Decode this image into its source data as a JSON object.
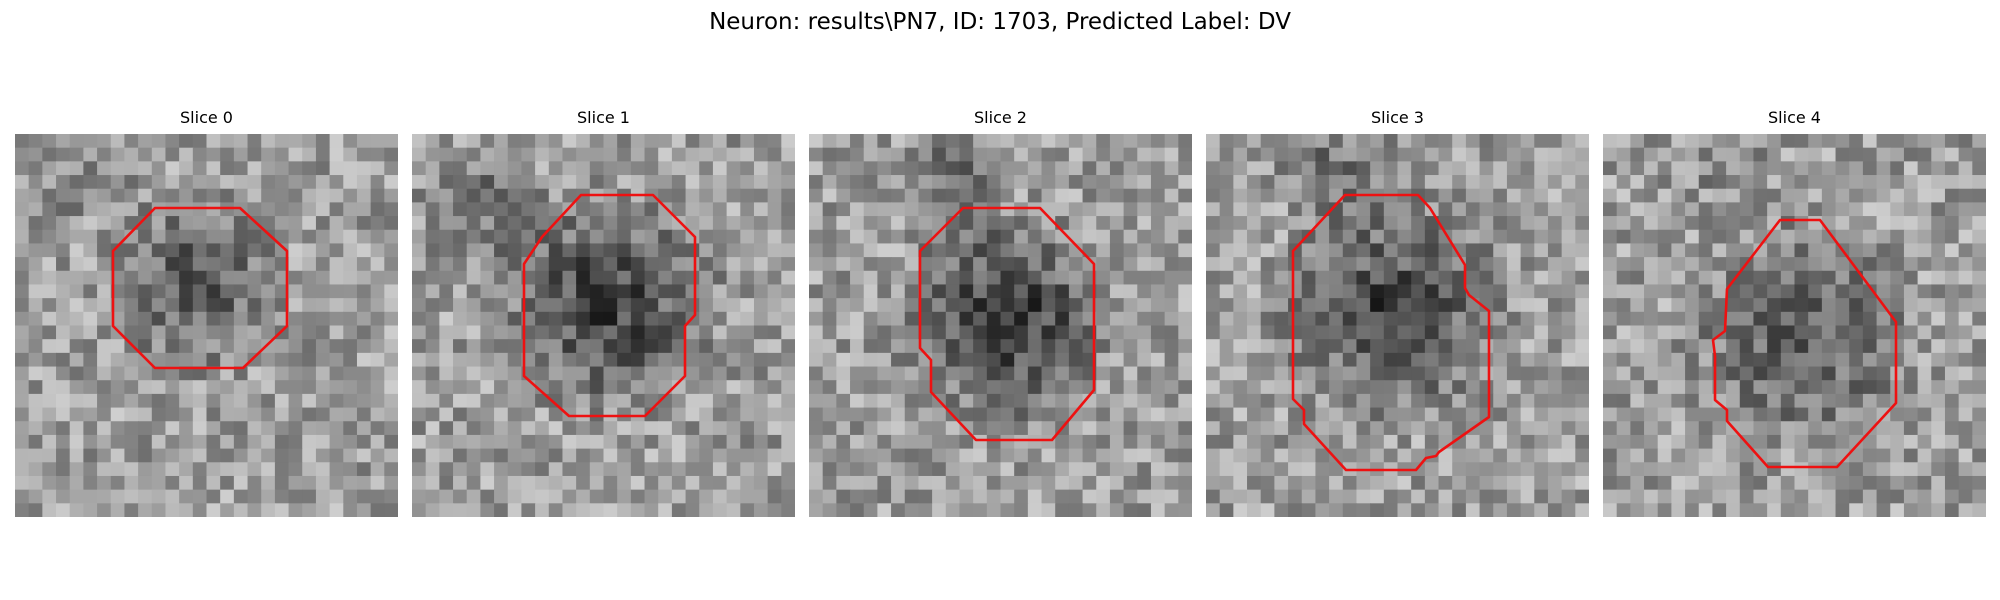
{
  "figure": {
    "title": "Neuron: results\\PN7, ID: 1703, Predicted Label: DV"
  },
  "colors": {
    "contour": "#ee1111",
    "background": "#ffffff"
  },
  "slices": [
    {
      "title": "Slice 0"
    },
    {
      "title": "Slice 1"
    },
    {
      "title": "Slice 2"
    },
    {
      "title": "Slice 3"
    },
    {
      "title": "Slice 4"
    }
  ]
}
